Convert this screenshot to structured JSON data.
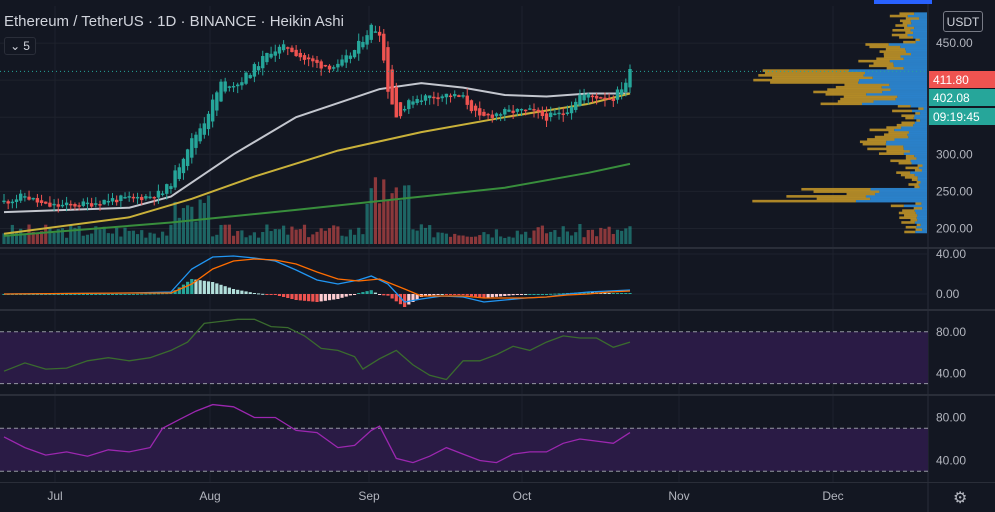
{
  "header": {
    "symbol": "Ethereum / TetherUS",
    "interval": "1D",
    "exchange": "BINANCE",
    "chart_style": "Heikin Ashi",
    "sep": "·",
    "indicator_count": "5",
    "currency": "USDT"
  },
  "price_tags": {
    "current": "411.80",
    "second": "402.08",
    "countdown": "09:19:45",
    "current_color": "#ef5350",
    "second_color": "#26a69a"
  },
  "colors": {
    "bg": "#131722",
    "grid": "#1e222d",
    "up": "#26a69a",
    "down": "#ef5350",
    "ma_fast": "#c3c6ce",
    "ma_mid": "#c9b13a",
    "ma_slow": "#388e3c",
    "macd": "#2196f3",
    "signal": "#ff6d00",
    "rsi_line": "#3a6b2e",
    "rsi2_line": "#9c27b0",
    "band": "#2a1b45",
    "vp_buy": "#2e8bd8",
    "vp_sell": "#c99a28"
  },
  "chart_data": [
    {
      "type": "candlestick",
      "title": "Ethereum / TetherUS 1D BINANCE Heikin Ashi",
      "x_ticks": [
        "Jul",
        "Aug",
        "Sep",
        "Oct",
        "Nov",
        "Dec"
      ],
      "y_ticks": [
        200,
        250,
        300,
        350,
        400,
        450
      ],
      "y_tick_labels": [
        "200.00",
        "250.00",
        "300.00",
        "",
        "",
        "450.00"
      ],
      "ylim": [
        175,
        500
      ],
      "current_price": 411.8,
      "close_points": [
        [
          0,
          236
        ],
        [
          5,
          244
        ],
        [
          10,
          230
        ],
        [
          15,
          231
        ],
        [
          20,
          233
        ],
        [
          25,
          239
        ],
        [
          30,
          240
        ],
        [
          35,
          244
        ],
        [
          38,
          248
        ],
        [
          40,
          262
        ],
        [
          44,
          310
        ],
        [
          48,
          345
        ],
        [
          52,
          396
        ],
        [
          56,
          395
        ],
        [
          60,
          417
        ],
        [
          64,
          440
        ],
        [
          68,
          445
        ],
        [
          72,
          428
        ],
        [
          76,
          420
        ],
        [
          80,
          418
        ],
        [
          84,
          440
        ],
        [
          88,
          472
        ],
        [
          90,
          465
        ],
        [
          92,
          388
        ],
        [
          94,
          350
        ],
        [
          98,
          375
        ],
        [
          102,
          378
        ],
        [
          106,
          380
        ],
        [
          110,
          376
        ],
        [
          114,
          348
        ],
        [
          118,
          355
        ],
        [
          122,
          358
        ],
        [
          126,
          358
        ],
        [
          130,
          350
        ],
        [
          134,
          355
        ],
        [
          138,
          380
        ],
        [
          142,
          378
        ],
        [
          146,
          376
        ],
        [
          149,
          398
        ],
        [
          150,
          411.8
        ]
      ],
      "moving_averages": [
        {
          "name": "",
          "points": [
            [
              0,
              222
            ],
            [
              30,
              228
            ],
            [
              40,
              243
            ],
            [
              55,
              300
            ],
            [
              70,
              350
            ],
            [
              90,
              388
            ],
            [
              100,
              396
            ],
            [
              110,
              390
            ],
            [
              120,
              380
            ],
            [
              130,
              378
            ],
            [
              140,
              382
            ],
            [
              150,
              382
            ]
          ]
        },
        {
          "name": "",
          "points": [
            [
              0,
              193
            ],
            [
              30,
              215
            ],
            [
              45,
              240
            ],
            [
              60,
              270
            ],
            [
              80,
              305
            ],
            [
              100,
              330
            ],
            [
              120,
              350
            ],
            [
              140,
              368
            ],
            [
              150,
              382
            ]
          ]
        },
        {
          "name": "",
          "points": [
            [
              0,
              190
            ],
            [
              40,
              208
            ],
            [
              70,
              225
            ],
            [
              100,
              243
            ],
            [
              120,
              255
            ],
            [
              140,
              275
            ],
            [
              150,
              287
            ]
          ]
        }
      ],
      "volume": {
        "ylim": [
          0,
          1
        ]
      }
    },
    {
      "type": "histogram",
      "y_ticks": [
        0,
        40
      ],
      "y_tick_labels": [
        "0.00",
        "40.00"
      ],
      "ylim": [
        -15,
        45
      ],
      "macd": [
        [
          0,
          0
        ],
        [
          30,
          1
        ],
        [
          40,
          2
        ],
        [
          45,
          25
        ],
        [
          50,
          37
        ],
        [
          55,
          38
        ],
        [
          60,
          36
        ],
        [
          65,
          33
        ],
        [
          70,
          24
        ],
        [
          75,
          14
        ],
        [
          80,
          10
        ],
        [
          85,
          14
        ],
        [
          88,
          18
        ],
        [
          92,
          10
        ],
        [
          96,
          -8
        ],
        [
          100,
          -5
        ],
        [
          105,
          -2
        ],
        [
          110,
          -3
        ],
        [
          115,
          -8
        ],
        [
          120,
          -6
        ],
        [
          125,
          -4
        ],
        [
          130,
          -3
        ],
        [
          135,
          0
        ],
        [
          140,
          2
        ],
        [
          145,
          3
        ],
        [
          150,
          4
        ]
      ],
      "signal": [
        [
          0,
          0
        ],
        [
          30,
          1
        ],
        [
          40,
          1
        ],
        [
          45,
          10
        ],
        [
          50,
          25
        ],
        [
          55,
          33
        ],
        [
          60,
          35
        ],
        [
          65,
          34
        ],
        [
          70,
          30
        ],
        [
          75,
          22
        ],
        [
          80,
          15
        ],
        [
          85,
          13
        ],
        [
          90,
          15
        ],
        [
          96,
          5
        ],
        [
          100,
          -2
        ],
        [
          105,
          -2
        ],
        [
          110,
          -2
        ],
        [
          115,
          -4
        ],
        [
          120,
          -4
        ],
        [
          125,
          -4
        ],
        [
          130,
          -3
        ],
        [
          135,
          -1
        ],
        [
          140,
          0
        ],
        [
          145,
          2
        ],
        [
          150,
          3
        ]
      ]
    },
    {
      "type": "line",
      "y_ticks": [
        40,
        80
      ],
      "y_tick_labels": [
        "40.00",
        "80.00"
      ],
      "ylim": [
        20,
        100
      ],
      "bands": [
        30,
        80
      ],
      "points": [
        [
          0,
          42
        ],
        [
          5,
          50
        ],
        [
          10,
          44
        ],
        [
          15,
          45
        ],
        [
          20,
          52
        ],
        [
          25,
          55
        ],
        [
          30,
          52
        ],
        [
          35,
          55
        ],
        [
          40,
          62
        ],
        [
          44,
          70
        ],
        [
          48,
          88
        ],
        [
          52,
          90
        ],
        [
          56,
          92
        ],
        [
          60,
          92
        ],
        [
          64,
          85
        ],
        [
          68,
          84
        ],
        [
          72,
          76
        ],
        [
          76,
          64
        ],
        [
          80,
          62
        ],
        [
          84,
          56
        ],
        [
          86,
          44
        ],
        [
          90,
          54
        ],
        [
          94,
          62
        ],
        [
          98,
          48
        ],
        [
          102,
          38
        ],
        [
          106,
          34
        ],
        [
          110,
          52
        ],
        [
          114,
          52
        ],
        [
          118,
          58
        ],
        [
          122,
          66
        ],
        [
          126,
          62
        ],
        [
          130,
          70
        ],
        [
          134,
          76
        ],
        [
          138,
          74
        ],
        [
          142,
          74
        ],
        [
          146,
          65
        ],
        [
          150,
          70
        ]
      ]
    },
    {
      "type": "line",
      "y_ticks": [
        40,
        80
      ],
      "y_tick_labels": [
        "40.00",
        "80.00"
      ],
      "ylim": [
        20,
        100
      ],
      "bands": [
        30,
        70
      ],
      "points": [
        [
          0,
          62
        ],
        [
          5,
          52
        ],
        [
          10,
          45
        ],
        [
          15,
          48
        ],
        [
          20,
          44
        ],
        [
          25,
          50
        ],
        [
          30,
          48
        ],
        [
          35,
          52
        ],
        [
          38,
          70
        ],
        [
          42,
          78
        ],
        [
          46,
          86
        ],
        [
          50,
          92
        ],
        [
          55,
          90
        ],
        [
          60,
          80
        ],
        [
          65,
          80
        ],
        [
          70,
          68
        ],
        [
          75,
          66
        ],
        [
          80,
          52
        ],
        [
          84,
          54
        ],
        [
          88,
          68
        ],
        [
          90,
          72
        ],
        [
          94,
          42
        ],
        [
          98,
          38
        ],
        [
          102,
          44
        ],
        [
          106,
          52
        ],
        [
          110,
          46
        ],
        [
          114,
          40
        ],
        [
          118,
          38
        ],
        [
          122,
          46
        ],
        [
          126,
          48
        ],
        [
          130,
          48
        ],
        [
          134,
          56
        ],
        [
          138,
          60
        ],
        [
          142,
          58
        ],
        [
          146,
          56
        ],
        [
          150,
          66
        ]
      ]
    }
  ]
}
